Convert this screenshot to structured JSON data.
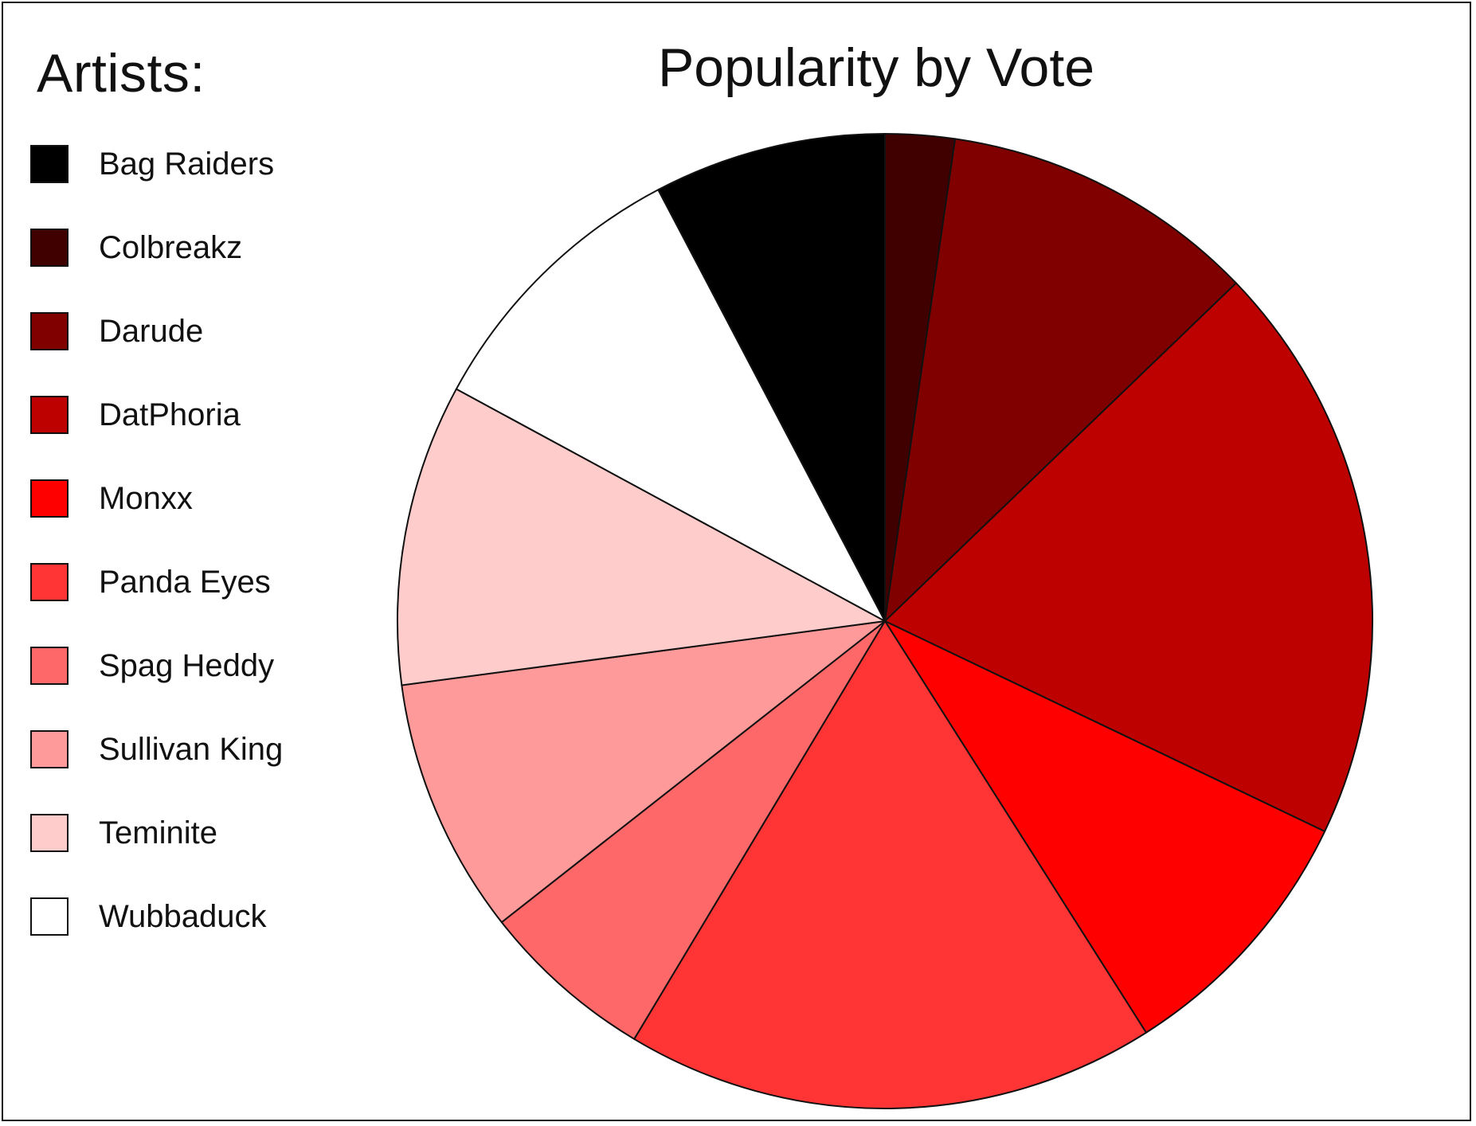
{
  "chart_data": {
    "type": "pie",
    "title": "Popularity by Vote",
    "legend_title": "Artists:",
    "legend_position": "left",
    "start_angle": "top",
    "direction": "clockwise",
    "slices": [
      {
        "label": "Colbreakz",
        "value": 2.3,
        "color": "#400000"
      },
      {
        "label": "Darude",
        "value": 10.5,
        "color": "#800000"
      },
      {
        "label": "DatPhoria",
        "value": 19.3,
        "color": "#BD0000"
      },
      {
        "label": "Monxx",
        "value": 8.9,
        "color": "#FF0000"
      },
      {
        "label": "Panda Eyes",
        "value": 17.6,
        "color": "#FF3535"
      },
      {
        "label": "Spag Heddy",
        "value": 5.8,
        "color": "#FF6868"
      },
      {
        "label": "Sullivan King",
        "value": 8.5,
        "color": "#FF9A9A"
      },
      {
        "label": "Teminite",
        "value": 10.0,
        "color": "#FFCCCC"
      },
      {
        "label": "Wubbaduck",
        "value": 9.4,
        "color": "#FFFFFF"
      },
      {
        "label": "Bag Raiders",
        "value": 7.7,
        "color": "#000000"
      }
    ],
    "legend": [
      {
        "label": "Bag Raiders",
        "color": "#000000"
      },
      {
        "label": "Colbreakz",
        "color": "#400000"
      },
      {
        "label": "Darude",
        "color": "#800000"
      },
      {
        "label": "DatPhoria",
        "color": "#BD0000"
      },
      {
        "label": "Monxx",
        "color": "#FF0000"
      },
      {
        "label": "Panda Eyes",
        "color": "#FF3535"
      },
      {
        "label": "Spag Heddy",
        "color": "#FF6868"
      },
      {
        "label": "Sullivan King",
        "color": "#FF9A9A"
      },
      {
        "label": "Teminite",
        "color": "#FFCCCC"
      },
      {
        "label": "Wubbaduck",
        "color": "#FFFFFF"
      }
    ]
  }
}
